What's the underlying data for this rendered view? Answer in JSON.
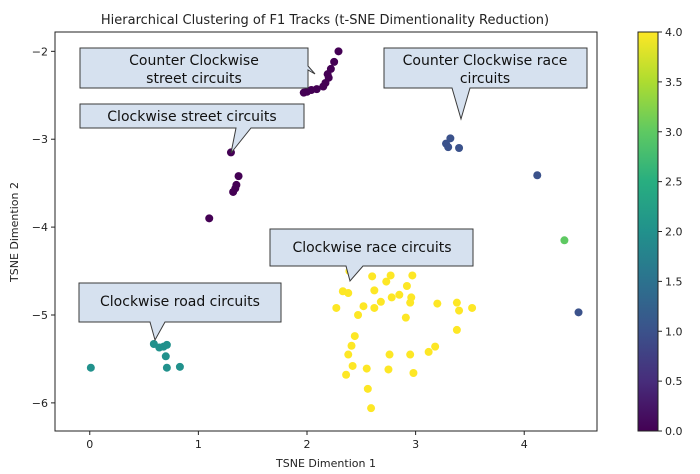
{
  "chart_data": {
    "type": "scatter",
    "title": "Hierarchical Clustering  of F1 Tracks (t-SNE Dimentionality Reduction)",
    "xlabel": "TSNE Dimention 1",
    "ylabel": "TSNE Dimention 2",
    "xlim": [
      -0.32,
      4.67
    ],
    "ylim": [
      -6.32,
      -1.78
    ],
    "xticks": [
      0,
      1,
      2,
      3,
      4
    ],
    "yticks": [
      -6,
      -5,
      -4,
      -3,
      -2
    ],
    "colorbar": {
      "min": 0.0,
      "max": 4.0,
      "ticks": [
        "0.0",
        "0.5",
        "1.0",
        "1.5",
        "2.0",
        "2.5",
        "3.0",
        "3.5",
        "4.0"
      ]
    },
    "cluster_colors": [
      "#440154",
      "#3b528b",
      "#21918c",
      "#5ec962",
      "#fde725"
    ],
    "points": [
      {
        "x": 2.29,
        "y": -2.0,
        "c": 0
      },
      {
        "x": 2.25,
        "y": -2.12,
        "c": 0
      },
      {
        "x": 2.22,
        "y": -2.2,
        "c": 0
      },
      {
        "x": 2.19,
        "y": -2.26,
        "c": 0
      },
      {
        "x": 2.2,
        "y": -2.3,
        "c": 0
      },
      {
        "x": 2.17,
        "y": -2.36,
        "c": 0
      },
      {
        "x": 2.15,
        "y": -2.4,
        "c": 0
      },
      {
        "x": 2.09,
        "y": -2.43,
        "c": 0
      },
      {
        "x": 2.04,
        "y": -2.44,
        "c": 0
      },
      {
        "x": 2.0,
        "y": -2.46,
        "c": 0
      },
      {
        "x": 1.97,
        "y": -2.47,
        "c": 0
      },
      {
        "x": 1.3,
        "y": -3.15,
        "c": 0
      },
      {
        "x": 1.37,
        "y": -3.42,
        "c": 0
      },
      {
        "x": 1.35,
        "y": -3.52,
        "c": 0
      },
      {
        "x": 1.34,
        "y": -3.56,
        "c": 0
      },
      {
        "x": 1.32,
        "y": -3.6,
        "c": 0
      },
      {
        "x": 1.1,
        "y": -3.9,
        "c": 0
      },
      {
        "x": 3.32,
        "y": -2.99,
        "c": 1
      },
      {
        "x": 3.28,
        "y": -3.05,
        "c": 1
      },
      {
        "x": 3.3,
        "y": -3.09,
        "c": 1
      },
      {
        "x": 3.4,
        "y": -3.1,
        "c": 1
      },
      {
        "x": 4.12,
        "y": -3.41,
        "c": 1
      },
      {
        "x": 4.5,
        "y": -4.97,
        "c": 1
      },
      {
        "x": 0.01,
        "y": -5.6,
        "c": 2
      },
      {
        "x": 0.59,
        "y": -5.33,
        "c": 2
      },
      {
        "x": 0.64,
        "y": -5.37,
        "c": 2
      },
      {
        "x": 0.68,
        "y": -5.36,
        "c": 2
      },
      {
        "x": 0.71,
        "y": -5.34,
        "c": 2
      },
      {
        "x": 0.7,
        "y": -5.47,
        "c": 2
      },
      {
        "x": 0.71,
        "y": -5.6,
        "c": 2
      },
      {
        "x": 0.83,
        "y": -5.59,
        "c": 2
      },
      {
        "x": 4.37,
        "y": -4.15,
        "c": 3
      },
      {
        "x": 2.39,
        "y": -4.5,
        "c": 4
      },
      {
        "x": 2.6,
        "y": -4.56,
        "c": 4
      },
      {
        "x": 2.77,
        "y": -4.55,
        "c": 4
      },
      {
        "x": 2.73,
        "y": -4.62,
        "c": 4
      },
      {
        "x": 2.97,
        "y": -4.55,
        "c": 4
      },
      {
        "x": 2.92,
        "y": -4.67,
        "c": 4
      },
      {
        "x": 2.62,
        "y": -4.72,
        "c": 4
      },
      {
        "x": 2.33,
        "y": -4.73,
        "c": 4
      },
      {
        "x": 2.38,
        "y": -4.75,
        "c": 4
      },
      {
        "x": 2.85,
        "y": -4.77,
        "c": 4
      },
      {
        "x": 2.78,
        "y": -4.8,
        "c": 4
      },
      {
        "x": 2.96,
        "y": -4.8,
        "c": 4
      },
      {
        "x": 2.68,
        "y": -4.85,
        "c": 4
      },
      {
        "x": 2.27,
        "y": -4.92,
        "c": 4
      },
      {
        "x": 2.52,
        "y": -4.9,
        "c": 4
      },
      {
        "x": 2.62,
        "y": -4.92,
        "c": 4
      },
      {
        "x": 2.95,
        "y": -4.86,
        "c": 4
      },
      {
        "x": 3.2,
        "y": -4.87,
        "c": 4
      },
      {
        "x": 3.38,
        "y": -4.86,
        "c": 4
      },
      {
        "x": 3.52,
        "y": -4.92,
        "c": 4
      },
      {
        "x": 3.4,
        "y": -4.95,
        "c": 4
      },
      {
        "x": 2.47,
        "y": -5.0,
        "c": 4
      },
      {
        "x": 2.91,
        "y": -5.03,
        "c": 4
      },
      {
        "x": 3.38,
        "y": -5.17,
        "c": 4
      },
      {
        "x": 2.44,
        "y": -5.24,
        "c": 4
      },
      {
        "x": 2.41,
        "y": -5.35,
        "c": 4
      },
      {
        "x": 3.18,
        "y": -5.36,
        "c": 4
      },
      {
        "x": 3.12,
        "y": -5.42,
        "c": 4
      },
      {
        "x": 2.38,
        "y": -5.45,
        "c": 4
      },
      {
        "x": 2.76,
        "y": -5.45,
        "c": 4
      },
      {
        "x": 2.95,
        "y": -5.45,
        "c": 4
      },
      {
        "x": 2.42,
        "y": -5.58,
        "c": 4
      },
      {
        "x": 2.55,
        "y": -5.61,
        "c": 4
      },
      {
        "x": 2.75,
        "y": -5.62,
        "c": 4
      },
      {
        "x": 2.98,
        "y": -5.66,
        "c": 4
      },
      {
        "x": 2.36,
        "y": -5.68,
        "c": 4
      },
      {
        "x": 2.56,
        "y": -5.84,
        "c": 4
      },
      {
        "x": 2.59,
        "y": -6.06,
        "c": 4
      }
    ],
    "annotations": [
      {
        "text_lines": [
          "Counter Clockwise",
          "street  circuits"
        ]
      },
      {
        "text_lines": [
          "Counter Clockwise race",
          "circuits"
        ]
      },
      {
        "text_lines": [
          "Clockwise street  circuits"
        ]
      },
      {
        "text_lines": [
          "Clockwise race circuits"
        ]
      },
      {
        "text_lines": [
          "Clockwise road circuits"
        ]
      }
    ]
  }
}
